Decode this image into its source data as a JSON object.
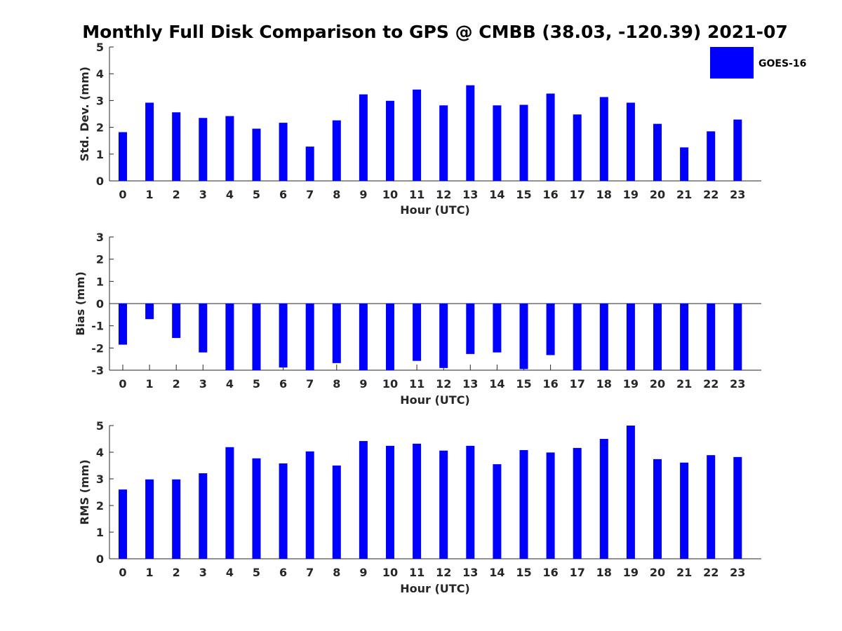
{
  "title": "Monthly Full Disk Comparison to GPS @ CMBB (38.03, -120.39) 2021-07",
  "legend": {
    "label": "GOES-16",
    "color": "#0000ff",
    "placement": "top-right"
  },
  "chart_data": [
    {
      "type": "bar",
      "categories": [
        "0",
        "1",
        "2",
        "3",
        "4",
        "5",
        "6",
        "7",
        "8",
        "9",
        "10",
        "11",
        "12",
        "13",
        "14",
        "15",
        "16",
        "17",
        "18",
        "19",
        "20",
        "21",
        "22",
        "23"
      ],
      "series": [
        {
          "name": "GOES-16",
          "color": "#0000ff",
          "values": [
            1.82,
            2.92,
            2.56,
            2.35,
            2.42,
            1.95,
            2.17,
            1.28,
            2.26,
            3.23,
            2.99,
            3.41,
            2.82,
            3.57,
            2.82,
            2.84,
            3.26,
            2.48,
            3.13,
            2.92,
            2.13,
            1.25,
            1.85,
            2.29
          ]
        }
      ],
      "title": "",
      "xlabel": "Hour (UTC)",
      "ylabel": "Std. Dev. (mm)",
      "ylim": [
        0,
        5
      ],
      "yticks": [
        "0",
        "1",
        "2",
        "3",
        "4",
        "5"
      ],
      "grid": false
    },
    {
      "type": "bar",
      "categories": [
        "0",
        "1",
        "2",
        "3",
        "4",
        "5",
        "6",
        "7",
        "8",
        "9",
        "10",
        "11",
        "12",
        "13",
        "14",
        "15",
        "16",
        "17",
        "18",
        "19",
        "20",
        "21",
        "22",
        "23"
      ],
      "series": [
        {
          "name": "GOES-16",
          "color": "#0000ff",
          "values": [
            -1.85,
            -0.7,
            -1.55,
            -2.2,
            -3.0,
            -3.0,
            -2.88,
            -3.0,
            -2.68,
            -3.0,
            -3.0,
            -2.58,
            -2.9,
            -2.27,
            -2.2,
            -2.95,
            -2.32,
            -3.0,
            -3.0,
            -3.0,
            -3.0,
            -3.0,
            -3.0,
            -3.0
          ]
        }
      ],
      "title": "",
      "xlabel": "Hour (UTC)",
      "ylabel": "Bias (mm)",
      "ylim": [
        -3,
        3
      ],
      "yticks": [
        "-3",
        "-2",
        "-1",
        "0",
        "1",
        "2",
        "3"
      ],
      "grid": false
    },
    {
      "type": "bar",
      "categories": [
        "0",
        "1",
        "2",
        "3",
        "4",
        "5",
        "6",
        "7",
        "8",
        "9",
        "10",
        "11",
        "12",
        "13",
        "14",
        "15",
        "16",
        "17",
        "18",
        "19",
        "20",
        "21",
        "22",
        "23"
      ],
      "series": [
        {
          "name": "GOES-16",
          "color": "#0000ff",
          "values": [
            2.6,
            2.98,
            2.98,
            3.21,
            4.19,
            3.77,
            3.58,
            4.03,
            3.5,
            4.42,
            4.24,
            4.32,
            4.06,
            4.24,
            3.55,
            4.08,
            3.99,
            4.16,
            4.5,
            5.0,
            3.74,
            3.61,
            3.89,
            3.82
          ]
        }
      ],
      "title": "",
      "xlabel": "Hour (UTC)",
      "ylabel": "RMS (mm)",
      "ylim": [
        0,
        5
      ],
      "yticks": [
        "0",
        "1",
        "2",
        "3",
        "4",
        "5"
      ],
      "grid": false
    }
  ]
}
